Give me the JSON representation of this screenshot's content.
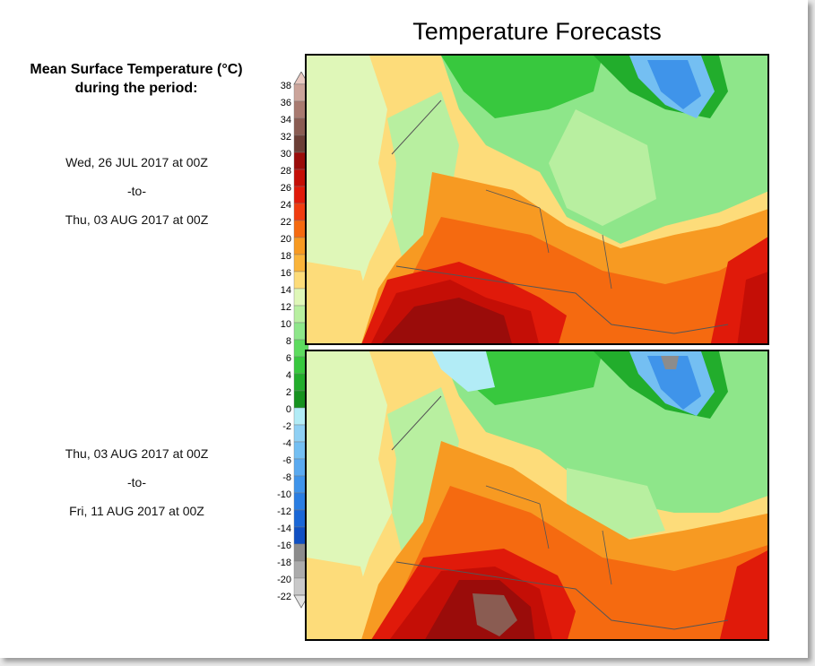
{
  "title": "Temperature Forecasts",
  "subtitle_line1": "Mean Surface Temperature (°C)",
  "subtitle_line2": "during the period:",
  "periods": [
    {
      "start": "Wed, 26 JUL 2017 at 00Z",
      "sep": "-to-",
      "end": "Thu, 03 AUG 2017 at 00Z"
    },
    {
      "start": "Thu, 03 AUG 2017 at 00Z",
      "sep": "-to-",
      "end": "Fri, 11 AUG 2017 at 00Z"
    }
  ],
  "legend": {
    "labels": [
      "38",
      "36",
      "34",
      "32",
      "30",
      "28",
      "26",
      "24",
      "22",
      "20",
      "18",
      "16",
      "14",
      "12",
      "10",
      "8",
      "6",
      "4",
      "2",
      "0",
      "-2",
      "-4",
      "-6",
      "-8",
      "-10",
      "-12",
      "-14",
      "-16",
      "-18",
      "-20",
      "-22"
    ],
    "colors": [
      "#e8c8c0",
      "#cba49a",
      "#a87a70",
      "#8a5c52",
      "#6b3e36",
      "#9a0c0a",
      "#c40e06",
      "#e01a0a",
      "#f03c10",
      "#f56a10",
      "#f79a22",
      "#fab43a",
      "#fddc7a",
      "#dff7b8",
      "#b8efa0",
      "#8ee68a",
      "#5ddc5f",
      "#38c83e",
      "#22ad2c",
      "#16921f",
      "#b2ecf6",
      "#8fd0f4",
      "#74bff2",
      "#5aaaf0",
      "#3f94ea",
      "#2a7ee2",
      "#1a67d6",
      "#1050c2",
      "#8c8c8c",
      "#ababab",
      "#c9c9c9",
      "#e2e2e2"
    ]
  },
  "colors": {
    "map_border": "#000000",
    "hot": "#c81808",
    "warm": "#f08828",
    "mild": "#fbd870",
    "cool": "#8ee68a",
    "cold_water": "#1a67d6"
  }
}
